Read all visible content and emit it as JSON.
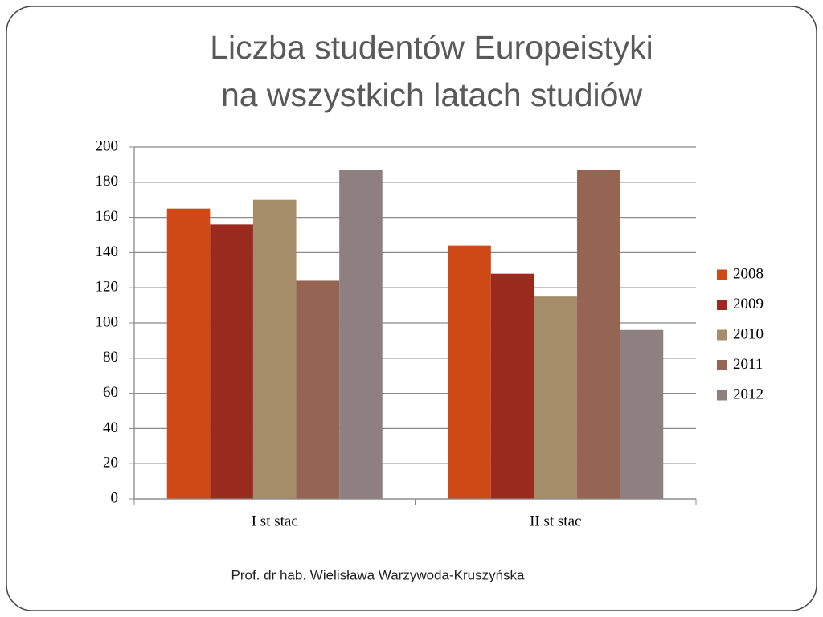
{
  "chart_data": {
    "type": "bar",
    "title": [
      "Liczba studentów Europeistyki",
      "na wszystkich latach studiów"
    ],
    "categories": [
      "I st stac",
      "II st stac"
    ],
    "series": [
      {
        "name": "2008",
        "color": "#d04a17",
        "values": [
          165,
          144
        ]
      },
      {
        "name": "2009",
        "color": "#9c2b1f",
        "values": [
          156,
          128
        ]
      },
      {
        "name": "2010",
        "color": "#a58d6a",
        "values": [
          170,
          115
        ]
      },
      {
        "name": "2011",
        "color": "#956453",
        "values": [
          124,
          187
        ]
      },
      {
        "name": "2012",
        "color": "#8e8080",
        "values": [
          187,
          96
        ]
      }
    ],
    "ylim": [
      0,
      200
    ],
    "yticks": [
      0,
      20,
      40,
      60,
      80,
      100,
      120,
      140,
      160,
      180,
      200
    ],
    "grid": true,
    "legend": "right"
  },
  "footer": "Prof. dr hab. Wielisława Warzywoda-Kruszyńska"
}
